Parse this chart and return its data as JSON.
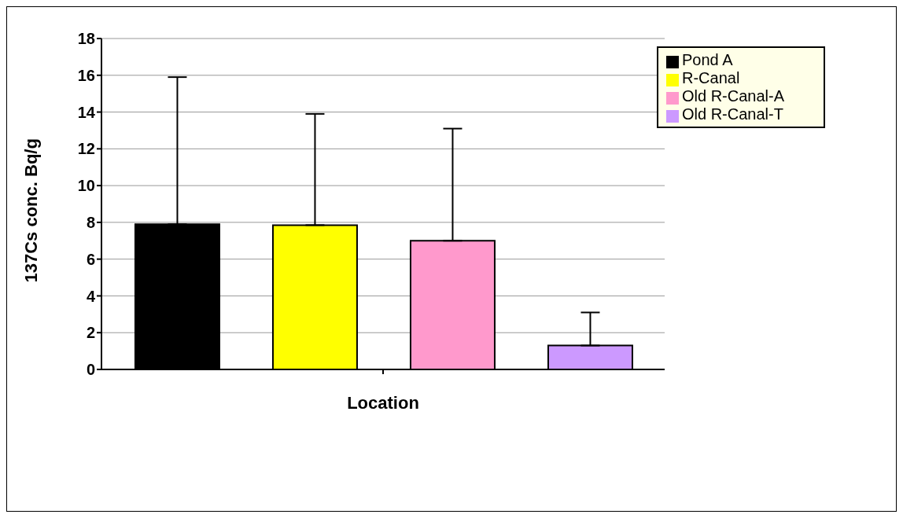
{
  "chart_data": {
    "type": "bar",
    "xlabel": "Location",
    "ylabel": "137Cs conc. Bq/g",
    "categories": [
      null
    ],
    "series": [
      {
        "name": "Pond A",
        "color": "#000000",
        "values": [
          7.9
        ],
        "errors": [
          [
            7.9,
            15.9
          ]
        ]
      },
      {
        "name": "R-Canal",
        "color": "#ffff00",
        "values": [
          7.85
        ],
        "errors": [
          [
            7.85,
            13.9
          ]
        ]
      },
      {
        "name": "Old R-Canal-A",
        "color": "#ff99cc",
        "values": [
          7.0
        ],
        "errors": [
          [
            7.0,
            13.1
          ]
        ]
      },
      {
        "name": "Old R-Canal-T",
        "color": "#cc99ff",
        "values": [
          1.3
        ],
        "errors": [
          [
            1.3,
            3.1
          ]
        ]
      }
    ],
    "ylim": [
      0,
      18
    ],
    "yticks": [
      0,
      2,
      4,
      6,
      8,
      10,
      12,
      14,
      16,
      18
    ],
    "grid": "y",
    "legend": "top right"
  }
}
